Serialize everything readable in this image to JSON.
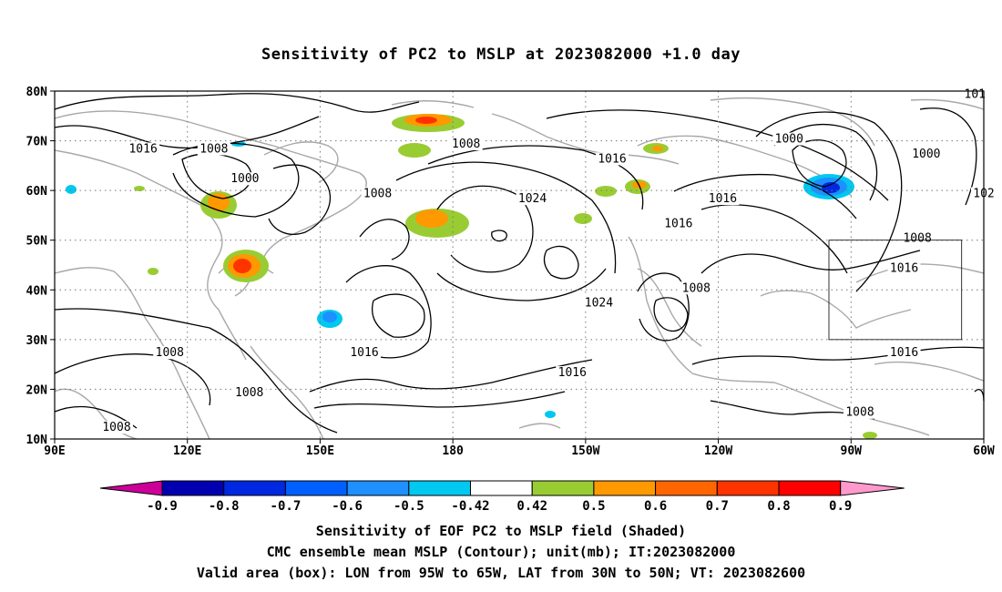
{
  "title": "Sensitivity of PC2 to MSLP at 2023082000 +1.0 day",
  "map": {
    "lon_range": [
      90,
      300
    ],
    "lat_range": [
      10,
      80
    ],
    "lat_ticks": [
      {
        "lat": 80,
        "label": "80N"
      },
      {
        "lat": 70,
        "label": "70N"
      },
      {
        "lat": 60,
        "label": "60N"
      },
      {
        "lat": 50,
        "label": "50N"
      },
      {
        "lat": 40,
        "label": "40N"
      },
      {
        "lat": 30,
        "label": "30N"
      },
      {
        "lat": 20,
        "label": "20N"
      },
      {
        "lat": 10,
        "label": "10N"
      }
    ],
    "lon_ticks": [
      {
        "lon": 90,
        "label": "90E"
      },
      {
        "lon": 120,
        "label": "120E"
      },
      {
        "lon": 150,
        "label": "150E"
      },
      {
        "lon": 180,
        "label": "180"
      },
      {
        "lon": 210,
        "label": "150W"
      },
      {
        "lon": 240,
        "label": "120W"
      },
      {
        "lon": 270,
        "label": "90W"
      },
      {
        "lon": 300,
        "label": "60W"
      }
    ],
    "valid_box": {
      "lon_min": 265,
      "lon_max": 295,
      "lat_min": 30,
      "lat_max": 50
    },
    "contour_labels": [
      {
        "text": "1016",
        "lon": 110,
        "lat": 68
      },
      {
        "text": "1008",
        "lon": 126,
        "lat": 68
      },
      {
        "text": "1000",
        "lon": 133,
        "lat": 62
      },
      {
        "text": "1008",
        "lon": 163,
        "lat": 59
      },
      {
        "text": "1008",
        "lon": 183,
        "lat": 69
      },
      {
        "text": "1016",
        "lon": 216,
        "lat": 66
      },
      {
        "text": "1024",
        "lon": 198,
        "lat": 58
      },
      {
        "text": "1016",
        "lon": 241,
        "lat": 58
      },
      {
        "text": "1016",
        "lon": 231,
        "lat": 53
      },
      {
        "text": "1000",
        "lon": 256,
        "lat": 70
      },
      {
        "text": "1000",
        "lon": 287,
        "lat": 67
      },
      {
        "text": "1008",
        "lon": 285,
        "lat": 50
      },
      {
        "text": "1016",
        "lon": 282,
        "lat": 44
      },
      {
        "text": "102",
        "lon": 300,
        "lat": 59
      },
      {
        "text": "101",
        "lon": 298,
        "lat": 79
      },
      {
        "text": "1024",
        "lon": 213,
        "lat": 37
      },
      {
        "text": "1008",
        "lon": 235,
        "lat": 40
      },
      {
        "text": "1016",
        "lon": 160,
        "lat": 27
      },
      {
        "text": "1008",
        "lon": 116,
        "lat": 27
      },
      {
        "text": "1008",
        "lon": 134,
        "lat": 19
      },
      {
        "text": "1016",
        "lon": 207,
        "lat": 23
      },
      {
        "text": "1016",
        "lon": 282,
        "lat": 27
      },
      {
        "text": "1008",
        "lon": 272,
        "lat": 15
      },
      {
        "text": "1008",
        "lon": 104,
        "lat": 12
      }
    ]
  },
  "colorbar": {
    "labels": [
      "-0.9",
      "-0.8",
      "-0.7",
      "-0.6",
      "-0.5",
      "-0.42",
      "0.42",
      "0.5",
      "0.6",
      "0.7",
      "0.8",
      "0.9"
    ],
    "colors": [
      "#cc0099",
      "#0000b0",
      "#0028e0",
      "#0060ff",
      "#1e90ff",
      "#00c8f0",
      "#ffffff",
      "#99cc33",
      "#ff9900",
      "#ff6600",
      "#ff3300",
      "#ff0000",
      "#ff99cc"
    ]
  },
  "caption": {
    "line1": "Sensitivity of EOF PC2 to MSLP field (Shaded)",
    "line2": "CMC ensemble mean MSLP (Contour); unit(mb); IT:2023082000",
    "line3": "Valid area (box): LON from 95W to 65W, LAT from 30N to 50N; VT: 2023082600"
  }
}
